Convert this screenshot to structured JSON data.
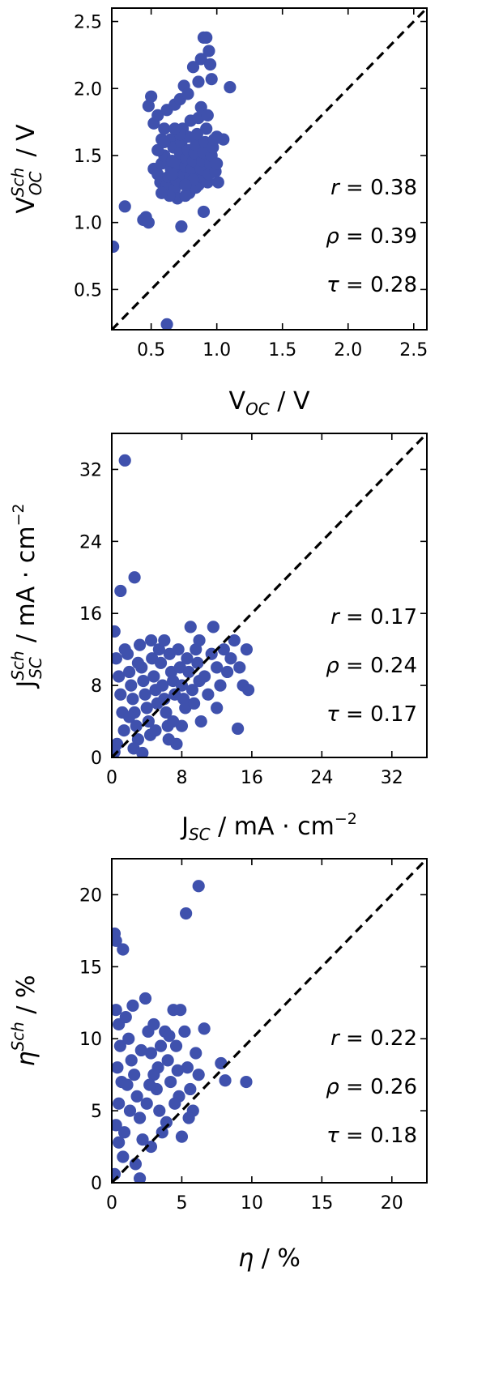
{
  "colors": {
    "points": "#3f51ad",
    "axes": "#000000",
    "diagonal": "#000000"
  },
  "chart_data": [
    {
      "type": "scatter",
      "title": "",
      "xlabel": {
        "base": "V",
        "sub": "OC",
        "sup": "",
        "unit": " / V"
      },
      "ylabel": {
        "base": "V",
        "sub": "OC",
        "sup": "Sch",
        "unit": " / V"
      },
      "xlim": [
        0.2,
        2.6
      ],
      "ylim": [
        0.2,
        2.6
      ],
      "xticks": [
        "0.5",
        "1.0",
        "1.5",
        "2.0",
        "2.5"
      ],
      "yticks": [
        "0.5",
        "1.0",
        "1.5",
        "2.0",
        "2.5"
      ],
      "reference_line": "y = x",
      "stats": [
        {
          "sym": "r",
          "text": " = 0.38"
        },
        {
          "sym": "ρ",
          "text": " = 0.39"
        },
        {
          "sym": "τ",
          "text": " = 0.28"
        }
      ],
      "points": [
        [
          0.21,
          0.82
        ],
        [
          0.3,
          1.12
        ],
        [
          0.44,
          1.02
        ],
        [
          0.46,
          1.04
        ],
        [
          0.48,
          1.87
        ],
        [
          0.5,
          1.94
        ],
        [
          0.52,
          1.74
        ],
        [
          0.55,
          1.8
        ],
        [
          0.58,
          1.62
        ],
        [
          0.6,
          1.7
        ],
        [
          0.62,
          1.84
        ],
        [
          0.65,
          1.62
        ],
        [
          0.68,
          1.88
        ],
        [
          0.72,
          1.92
        ],
        [
          0.75,
          2.02
        ],
        [
          0.78,
          1.96
        ],
        [
          0.82,
          2.16
        ],
        [
          0.86,
          2.05
        ],
        [
          0.88,
          2.22
        ],
        [
          0.9,
          2.38
        ],
        [
          0.92,
          2.38
        ],
        [
          0.94,
          2.28
        ],
        [
          0.95,
          2.18
        ],
        [
          0.96,
          2.07
        ],
        [
          1.1,
          2.01
        ],
        [
          1.0,
          1.64
        ],
        [
          1.05,
          1.62
        ],
        [
          0.73,
          0.97
        ],
        [
          0.9,
          1.08
        ],
        [
          0.62,
          0.24
        ],
        [
          0.48,
          1.0
        ],
        [
          0.52,
          1.4
        ],
        [
          0.55,
          1.36
        ],
        [
          0.57,
          1.3
        ],
        [
          0.58,
          1.44
        ],
        [
          0.6,
          1.5
        ],
        [
          0.62,
          1.28
        ],
        [
          0.63,
          1.34
        ],
        [
          0.65,
          1.4
        ],
        [
          0.66,
          1.46
        ],
        [
          0.67,
          1.56
        ],
        [
          0.68,
          1.25
        ],
        [
          0.69,
          1.32
        ],
        [
          0.7,
          1.38
        ],
        [
          0.71,
          1.44
        ],
        [
          0.72,
          1.52
        ],
        [
          0.73,
          1.6
        ],
        [
          0.74,
          1.3
        ],
        [
          0.75,
          1.36
        ],
        [
          0.76,
          1.42
        ],
        [
          0.77,
          1.48
        ],
        [
          0.78,
          1.54
        ],
        [
          0.79,
          1.22
        ],
        [
          0.8,
          1.34
        ],
        [
          0.81,
          1.4
        ],
        [
          0.82,
          1.46
        ],
        [
          0.83,
          1.52
        ],
        [
          0.84,
          1.58
        ],
        [
          0.85,
          1.66
        ],
        [
          0.86,
          1.28
        ],
        [
          0.87,
          1.34
        ],
        [
          0.88,
          1.4
        ],
        [
          0.89,
          1.46
        ],
        [
          0.9,
          1.52
        ],
        [
          0.91,
          1.6
        ],
        [
          0.92,
          1.7
        ],
        [
          0.93,
          1.3
        ],
        [
          0.94,
          1.36
        ],
        [
          0.95,
          1.44
        ],
        [
          0.96,
          1.5
        ],
        [
          0.97,
          1.56
        ],
        [
          0.98,
          1.62
        ],
        [
          0.99,
          1.38
        ],
        [
          1.0,
          1.44
        ],
        [
          1.01,
          1.3
        ],
        [
          0.7,
          1.18
        ],
        [
          0.76,
          1.2
        ],
        [
          0.84,
          1.26
        ],
        [
          0.64,
          1.2
        ],
        [
          0.58,
          1.22
        ],
        [
          0.74,
          1.7
        ],
        [
          0.8,
          1.76
        ],
        [
          0.86,
          1.78
        ],
        [
          0.78,
          1.64
        ],
        [
          0.72,
          1.66
        ],
        [
          0.68,
          1.7
        ],
        [
          0.88,
          1.86
        ],
        [
          0.93,
          1.8
        ],
        [
          0.55,
          1.54
        ],
        [
          0.6,
          1.6
        ],
        [
          0.82,
          1.32
        ],
        [
          0.76,
          1.28
        ],
        [
          0.66,
          1.36
        ]
      ]
    },
    {
      "type": "scatter",
      "title": "",
      "xlabel": {
        "base": "J",
        "sub": "SC",
        "sup": "",
        "unit": " / mA · cm",
        "unit_sup": "−2"
      },
      "ylabel": {
        "base": "J",
        "sub": "SC",
        "sup": "Sch",
        "unit": " / mA · cm",
        "unit_sup": "−2"
      },
      "xlim": [
        0,
        36
      ],
      "ylim": [
        0,
        36
      ],
      "xticks": [
        "0",
        "8",
        "16",
        "24",
        "32"
      ],
      "yticks": [
        "0",
        "8",
        "16",
        "24",
        "32"
      ],
      "reference_line": "y = x",
      "stats": [
        {
          "sym": "r",
          "text": " = 0.17"
        },
        {
          "sym": "ρ",
          "text": " = 0.24"
        },
        {
          "sym": "τ",
          "text": " = 0.17"
        }
      ],
      "points": [
        [
          1.5,
          33.0
        ],
        [
          2.6,
          20.0
        ],
        [
          1.0,
          18.5
        ],
        [
          0.3,
          14.0
        ],
        [
          0.5,
          11.0
        ],
        [
          0.8,
          9.0
        ],
        [
          1.0,
          7.0
        ],
        [
          1.2,
          5.0
        ],
        [
          1.4,
          3.0
        ],
        [
          0.6,
          1.5
        ],
        [
          0.3,
          0.6
        ],
        [
          1.8,
          11.5
        ],
        [
          2.0,
          9.5
        ],
        [
          2.2,
          8.0
        ],
        [
          2.4,
          6.5
        ],
        [
          2.6,
          5.0
        ],
        [
          2.8,
          3.5
        ],
        [
          3.0,
          2.0
        ],
        [
          3.2,
          12.5
        ],
        [
          3.4,
          10.0
        ],
        [
          3.6,
          8.5
        ],
        [
          3.8,
          7.0
        ],
        [
          4.0,
          5.5
        ],
        [
          4.2,
          4.0
        ],
        [
          4.4,
          2.5
        ],
        [
          4.6,
          11.0
        ],
        [
          4.8,
          9.0
        ],
        [
          5.0,
          7.5
        ],
        [
          5.2,
          6.0
        ],
        [
          5.4,
          12.0
        ],
        [
          5.6,
          10.5
        ],
        [
          5.8,
          8.0
        ],
        [
          6.0,
          6.5
        ],
        [
          6.2,
          5.0
        ],
        [
          6.4,
          3.5
        ],
        [
          6.6,
          11.5
        ],
        [
          6.8,
          9.5
        ],
        [
          7.0,
          8.5
        ],
        [
          7.2,
          7.0
        ],
        [
          7.4,
          1.5
        ],
        [
          7.6,
          12.0
        ],
        [
          7.8,
          10.0
        ],
        [
          8.0,
          8.0
        ],
        [
          8.2,
          6.5
        ],
        [
          8.4,
          5.5
        ],
        [
          8.6,
          11.0
        ],
        [
          8.8,
          9.5
        ],
        [
          9.0,
          14.5
        ],
        [
          9.2,
          7.5
        ],
        [
          9.4,
          6.0
        ],
        [
          9.6,
          12.0
        ],
        [
          9.8,
          10.5
        ],
        [
          10.0,
          8.5
        ],
        [
          10.2,
          4.0
        ],
        [
          10.6,
          9.0
        ],
        [
          11.0,
          7.0
        ],
        [
          11.4,
          11.5
        ],
        [
          11.6,
          14.5
        ],
        [
          12.0,
          10.0
        ],
        [
          12.4,
          8.0
        ],
        [
          12.8,
          12.0
        ],
        [
          13.2,
          9.5
        ],
        [
          13.6,
          11.0
        ],
        [
          14.0,
          13.0
        ],
        [
          14.4,
          3.2
        ],
        [
          14.6,
          10.0
        ],
        [
          15.0,
          8.0
        ],
        [
          15.4,
          12.0
        ],
        [
          15.6,
          7.5
        ],
        [
          4.5,
          13.0
        ],
        [
          6.0,
          13.0
        ],
        [
          3.0,
          10.5
        ],
        [
          2.0,
          4.5
        ],
        [
          5.0,
          3.0
        ],
        [
          8.0,
          3.5
        ],
        [
          10.0,
          13.0
        ],
        [
          12.0,
          5.5
        ],
        [
          1.5,
          12.0
        ],
        [
          2.5,
          1.0
        ],
        [
          3.5,
          0.5
        ],
        [
          6.5,
          2.0
        ],
        [
          7.0,
          4.0
        ]
      ]
    },
    {
      "type": "scatter",
      "title": "",
      "xlabel": {
        "base": "η",
        "sub": "",
        "sup": "",
        "unit": " / %",
        "italic_base": true
      },
      "ylabel": {
        "base": "η",
        "sub": "",
        "sup": "Sch",
        "unit": " / %",
        "italic_base": true
      },
      "xlim": [
        0,
        22.5
      ],
      "ylim": [
        0,
        22.5
      ],
      "xticks": [
        "0",
        "5",
        "10",
        "15",
        "20"
      ],
      "yticks": [
        "0",
        "5",
        "10",
        "15",
        "20"
      ],
      "reference_line": "y = x",
      "stats": [
        {
          "sym": "r",
          "text": " = 0.22"
        },
        {
          "sym": "ρ",
          "text": " = 0.26"
        },
        {
          "sym": "τ",
          "text": " = 0.18"
        }
      ],
      "points": [
        [
          6.2,
          20.6
        ],
        [
          5.3,
          18.7
        ],
        [
          0.2,
          17.3
        ],
        [
          0.3,
          16.8
        ],
        [
          0.8,
          16.2
        ],
        [
          0.3,
          12.0
        ],
        [
          0.5,
          11.0
        ],
        [
          0.6,
          9.5
        ],
        [
          0.4,
          8.0
        ],
        [
          0.7,
          7.0
        ],
        [
          0.5,
          5.5
        ],
        [
          0.3,
          4.0
        ],
        [
          0.5,
          2.8
        ],
        [
          0.8,
          1.8
        ],
        [
          0.2,
          0.6
        ],
        [
          1.0,
          11.5
        ],
        [
          1.2,
          10.0
        ],
        [
          1.4,
          8.5
        ],
        [
          1.6,
          7.5
        ],
        [
          1.8,
          6.0
        ],
        [
          2.0,
          4.5
        ],
        [
          2.2,
          3.0
        ],
        [
          2.0,
          0.3
        ],
        [
          1.7,
          1.3
        ],
        [
          2.4,
          12.8
        ],
        [
          2.6,
          10.5
        ],
        [
          2.8,
          9.0
        ],
        [
          3.0,
          7.5
        ],
        [
          3.2,
          6.5
        ],
        [
          3.4,
          5.0
        ],
        [
          3.6,
          3.5
        ],
        [
          3.8,
          10.5
        ],
        [
          4.0,
          8.5
        ],
        [
          4.2,
          7.0
        ],
        [
          4.4,
          12.0
        ],
        [
          4.6,
          9.5
        ],
        [
          4.8,
          6.0
        ],
        [
          5.0,
          3.2
        ],
        [
          5.2,
          10.5
        ],
        [
          5.4,
          8.0
        ],
        [
          5.6,
          6.5
        ],
        [
          5.8,
          5.0
        ],
        [
          6.0,
          9.0
        ],
        [
          6.2,
          7.5
        ],
        [
          6.6,
          10.7
        ],
        [
          7.8,
          8.3
        ],
        [
          8.1,
          7.1
        ],
        [
          9.6,
          7.0
        ],
        [
          4.9,
          12.0
        ],
        [
          3.0,
          11.0
        ],
        [
          1.5,
          12.3
        ],
        [
          2.5,
          5.5
        ],
        [
          3.5,
          9.5
        ],
        [
          4.5,
          5.5
        ],
        [
          5.5,
          4.5
        ],
        [
          2.8,
          2.5
        ],
        [
          1.3,
          5.0
        ],
        [
          0.9,
          3.5
        ],
        [
          3.3,
          8.0
        ],
        [
          4.1,
          10.2
        ],
        [
          2.1,
          9.2
        ],
        [
          1.1,
          6.8
        ],
        [
          2.7,
          6.8
        ],
        [
          4.7,
          7.8
        ],
        [
          3.9,
          4.2
        ]
      ]
    }
  ]
}
